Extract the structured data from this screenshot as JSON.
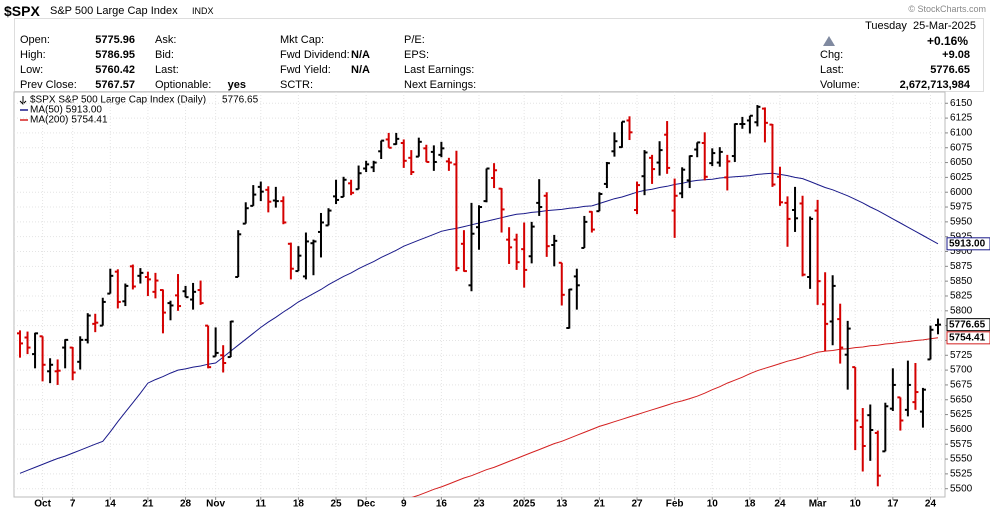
{
  "header": {
    "symbol": "$SPX",
    "name": "S&P 500 Large Cap Index",
    "exchange": "INDX",
    "watermark": "© StockCharts.com",
    "date": "Tuesday  25-Mar-2025",
    "change_pct": "+0.16%",
    "columns": [
      [
        {
          "label": "Open:",
          "value": 5775.96
        },
        {
          "label": "High:",
          "value": 5786.95
        },
        {
          "label": "Low:",
          "value": 5760.42
        },
        {
          "label": "Prev Close:",
          "value": 5767.57
        }
      ],
      [
        {
          "label": "Ask:"
        },
        {
          "label": "Bid:"
        },
        {
          "label": "Last:"
        },
        {
          "label": "Optionable:",
          "value": "yes"
        }
      ],
      [
        {
          "label": "Mkt Cap:"
        },
        {
          "label": "Fwd Dividend:",
          "value": "N/A"
        },
        {
          "label": "Fwd Yield:",
          "value": "N/A"
        },
        {
          "label": "SCTR:"
        }
      ],
      [
        {
          "label": "P/E:"
        },
        {
          "label": "EPS:"
        },
        {
          "label": "Last Earnings:"
        },
        {
          "label": "Next Earnings:"
        }
      ],
      [
        {
          "label": "Chg:",
          "value": "+9.08"
        },
        {
          "label": "Last:",
          "value": 5776.65
        },
        {
          "label": "Volume:",
          "value": "2,672,713,984"
        }
      ]
    ]
  },
  "chart_data": {
    "type": "ohlc",
    "legend_title": "$SPX S&P 500 Large Cap Index (Daily)",
    "up_color": "#000000",
    "down_color": "#d40000",
    "grid": true,
    "ylim": [
      5486,
      6169
    ],
    "yticks": [
      5500,
      5525,
      5550,
      5575,
      5600,
      5625,
      5650,
      5675,
      5700,
      5725,
      5750,
      5775,
      5800,
      5825,
      5850,
      5875,
      5900,
      5925,
      5950,
      5975,
      6000,
      6025,
      6050,
      6075,
      6100,
      6125,
      6150
    ],
    "xticks": [
      {
        "value": 3,
        "label": "Oct"
      },
      {
        "value": 7,
        "label": "7"
      },
      {
        "value": 12,
        "label": "14"
      },
      {
        "value": 17,
        "label": "21"
      },
      {
        "value": 22,
        "label": "28"
      },
      {
        "value": 26,
        "label": "Nov"
      },
      {
        "value": 32,
        "label": "11"
      },
      {
        "value": 37,
        "label": "18"
      },
      {
        "value": 42,
        "label": "25"
      },
      {
        "value": 46,
        "label": "Dec"
      },
      {
        "value": 51,
        "label": "9"
      },
      {
        "value": 56,
        "label": "16"
      },
      {
        "value": 61,
        "label": "23"
      },
      {
        "value": 67,
        "label": "2025"
      },
      {
        "value": 72,
        "label": "13"
      },
      {
        "value": 77,
        "label": "21"
      },
      {
        "value": 82,
        "label": "27"
      },
      {
        "value": 87,
        "label": "Feb"
      },
      {
        "value": 92,
        "label": "10"
      },
      {
        "value": 97,
        "label": "18"
      },
      {
        "value": 101,
        "label": "24"
      },
      {
        "value": 106,
        "label": "Mar"
      },
      {
        "value": 111,
        "label": "10"
      },
      {
        "value": 116,
        "label": "17"
      },
      {
        "value": 121,
        "label": "24"
      }
    ],
    "open": [
      5762,
      5755,
      5727,
      5757,
      5698,
      5698,
      5738,
      5738,
      5714,
      5751,
      5778,
      5775,
      5829,
      5866,
      5816,
      5875,
      5859,
      5857,
      5832,
      5835,
      5813,
      5826,
      5833,
      5819,
      5835,
      5775,
      5723,
      5725,
      5722,
      5857,
      5947,
      5977,
      6009,
      6004,
      5986,
      5985,
      5913,
      5867,
      5858,
      5914,
      5933,
      5944,
      5993,
      5992,
      6015,
      6005,
      6040,
      6042,
      6069,
      6089,
      6081,
      6083,
      6058,
      6060,
      6074,
      6068,
      6063,
      6052,
      6047,
      5913,
      5843,
      5941,
      5985,
      6024,
      6006,
      5920,
      5920,
      5904,
      5892,
      5982,
      5994,
      5911,
      5881,
      5771,
      5858,
      5906,
      5967,
      5968,
      6014,
      6069,
      6076,
      6121,
      5970,
      6027,
      6058,
      6050,
      6097,
      5969,
      5998,
      6020,
      6072,
      6083,
      6049,
      6050,
      6025,
      6061,
      6115,
      6121,
      6118,
      6141,
      6114,
      6026,
      5982,
      5970,
      5981,
      5857,
      5969,
      5811,
      5782,
      5786,
      5726,
      5705,
      5604,
      5624,
      5594,
      5563,
      5635,
      5654,
      5633,
      5646,
      5630,
      5718,
      5775.96
    ],
    "high": [
      5767,
      5765,
      5763,
      5757,
      5720,
      5718,
      5752,
      5739,
      5757,
      5796,
      5795,
      5822,
      5871,
      5870,
      5846,
      5878,
      5872,
      5866,
      5864,
      5836,
      5817,
      5862,
      5842,
      5847,
      5851,
      5775,
      5772,
      5742,
      5783,
      5936,
      5983,
      6012,
      6018,
      6010,
      6009,
      5993,
      5915,
      5909,
      5932,
      5920,
      5965,
      5973,
      6021,
      6026,
      6021,
      6045,
      6053,
      6053,
      6087,
      6100,
      6100,
      6089,
      6071,
      6092,
      6080,
      6079,
      6085,
      6058,
      6070,
      5936,
      5982,
      5978,
      6040,
      6049,
      6007,
      5941,
      5930,
      5949,
      5950,
      6022,
      6000,
      5928,
      5881,
      5837,
      5871,
      5960,
      5968,
      6000,
      6051,
      6101,
      6119,
      6128,
      6018,
      6071,
      6063,
      6086,
      6120,
      6023,
      6042,
      6062,
      6084,
      6101,
      6074,
      6076,
      6063,
      6116,
      6127,
      6129,
      6147,
      6143,
      6115,
      6043,
      5993,
      6009,
      5994,
      5959,
      5987,
      5865,
      5860,
      5812,
      5783,
      5705,
      5636,
      5642,
      5598,
      5645,
      5703,
      5654,
      5716,
      5712,
      5670,
      5775,
      5786.95
    ],
    "low": [
      5721,
      5727,
      5703,
      5681,
      5678,
      5675,
      5703,
      5683,
      5701,
      5745,
      5764,
      5775,
      5829,
      5804,
      5808,
      5836,
      5846,
      5825,
      5821,
      5762,
      5784,
      5800,
      5823,
      5802,
      5810,
      5703,
      5723,
      5696,
      5722,
      5857,
      5947,
      5977,
      5985,
      5966,
      5974,
      5946,
      5853,
      5867,
      5853,
      5860,
      5890,
      5944,
      5980,
      5992,
      5995,
      6005,
      6034,
      6034,
      6056,
      6075,
      6080,
      6041,
      6029,
      6060,
      6051,
      6036,
      6059,
      6036,
      5867,
      5866,
      5833,
      5903,
      5983,
      6007,
      5932,
      5879,
      5869,
      5839,
      5880,
      5960,
      5891,
      5875,
      5809,
      5770,
      5802,
      5906,
      5932,
      5968,
      6007,
      6060,
      6075,
      6088,
      5963,
      5995,
      6014,
      6028,
      6031,
      5923,
      5990,
      6007,
      6059,
      6020,
      6044,
      6043,
      6003,
      6051,
      6107,
      6099,
      6111,
      6084,
      6009,
      5977,
      5908,
      5933,
      5858,
      5837,
      5810,
      5732,
      5742,
      5711,
      5667,
      5565,
      5529,
      5547,
      5504,
      5563,
      5631,
      5598,
      5622,
      5633,
      5603,
      5718,
      5760.42
    ],
    "close": [
      5745,
      5738,
      5762,
      5709,
      5709,
      5699,
      5751,
      5696,
      5751,
      5792,
      5780,
      5815,
      5859,
      5815,
      5842,
      5841,
      5864,
      5853,
      5851,
      5797,
      5809,
      5808,
      5823,
      5832,
      5813,
      5705,
      5729,
      5712,
      5782,
      5929,
      5973,
      5996,
      6001,
      5984,
      5985,
      5949,
      5871,
      5893,
      5917,
      5917,
      5949,
      5969,
      5987,
      6021,
      5999,
      6032,
      6047,
      6050,
      6087,
      6075,
      6090,
      6053,
      6034,
      6085,
      6051,
      6051,
      6074,
      6050,
      5872,
      5867,
      5930,
      5975,
      6040,
      6037,
      5971,
      5907,
      5882,
      5869,
      5942,
      5975,
      5909,
      5918,
      5827,
      5836,
      5843,
      5950,
      5937,
      5997,
      6049,
      6086,
      6119,
      6101,
      6012,
      6067,
      6039,
      6071,
      6041,
      5994,
      6038,
      6061,
      6084,
      6026,
      6066,
      6068,
      6052,
      6115,
      6115,
      6129,
      6144,
      6117,
      6013,
      5983,
      5955,
      5956,
      5861,
      5955,
      5850,
      5778,
      5842,
      5738,
      5770,
      5615,
      5572,
      5599,
      5522,
      5639,
      5675,
      5615,
      5675,
      5663,
      5667,
      5768,
      5776.65
    ],
    "series": [
      {
        "name": "MA(50)",
        "color": "#1a1a8a",
        "last_label": "5913.00",
        "values": [
          5526,
          5531,
          5536,
          5541,
          5546,
          5551,
          5555,
          5560,
          5565,
          5570,
          5575,
          5580,
          5596,
          5613,
          5629,
          5645,
          5661,
          5678,
          5684,
          5689,
          5695,
          5700,
          5702,
          5705,
          5707,
          5710,
          5712,
          5722,
          5732,
          5742,
          5752,
          5762,
          5772,
          5781,
          5789,
          5798,
          5806,
          5815,
          5822,
          5829,
          5836,
          5844,
          5851,
          5858,
          5864,
          5871,
          5877,
          5883,
          5890,
          5896,
          5902,
          5909,
          5914,
          5919,
          5924,
          5929,
          5934,
          5937,
          5939,
          5942,
          5945,
          5948,
          5951,
          5954,
          5957,
          5960,
          5963,
          5964,
          5966,
          5967,
          5969,
          5970,
          5971,
          5973,
          5974,
          5976,
          5977,
          5981,
          5985,
          5989,
          5992,
          5996,
          6000,
          6003,
          6005,
          6008,
          6010,
          6013,
          6015,
          6018,
          6020,
          6021,
          6022,
          6024,
          6025,
          6026,
          6027,
          6028,
          6030,
          6031,
          6032,
          6030,
          6028,
          6025,
          6023,
          6018,
          6013,
          6008,
          6004,
          5999,
          5994,
          5988,
          5982,
          5975,
          5969,
          5962,
          5955,
          5948,
          5941,
          5934,
          5927,
          5920,
          5913
        ]
      },
      {
        "name": "MA(200)",
        "color": "#d42020",
        "last_label": "5754.41",
        "values": [
          null,
          null,
          null,
          null,
          null,
          null,
          null,
          null,
          null,
          null,
          null,
          null,
          null,
          null,
          null,
          null,
          null,
          null,
          null,
          null,
          null,
          null,
          null,
          null,
          null,
          null,
          null,
          null,
          null,
          null,
          null,
          null,
          null,
          null,
          null,
          null,
          null,
          null,
          null,
          null,
          null,
          null,
          null,
          null,
          null,
          null,
          null,
          null,
          null,
          null,
          null,
          5480,
          5485,
          5489,
          5494,
          5499,
          5503,
          5508,
          5513,
          5518,
          5522,
          5527,
          5532,
          5536,
          5541,
          5546,
          5551,
          5556,
          5561,
          5566,
          5571,
          5576,
          5580,
          5585,
          5590,
          5595,
          5600,
          5605,
          5609,
          5613,
          5617,
          5621,
          5625,
          5629,
          5633,
          5637,
          5641,
          5645,
          5648,
          5652,
          5656,
          5661,
          5667,
          5672,
          5678,
          5683,
          5688,
          5694,
          5699,
          5703,
          5707,
          5711,
          5715,
          5718,
          5722,
          5726,
          5730,
          5732,
          5733,
          5735,
          5736,
          5738,
          5739,
          5741,
          5742,
          5744,
          5745,
          5747,
          5748,
          5750,
          5751,
          5753,
          5754.41
        ]
      }
    ]
  }
}
